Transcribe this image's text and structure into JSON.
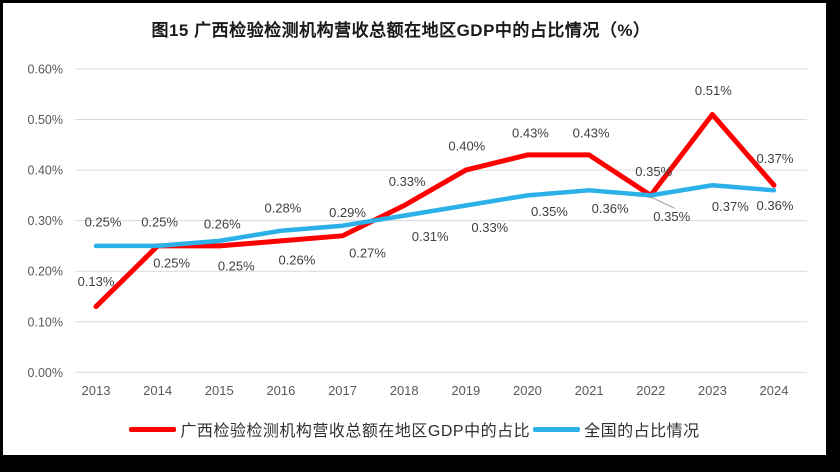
{
  "title": "图15 广西检验检测机构营收总额在地区GDP中的占比情况（%）",
  "chart_data": {
    "type": "line",
    "title": "图15 广西检验检测机构营收总额在地区GDP中的占比情况（%）",
    "categories": [
      "2013",
      "2014",
      "2015",
      "2016",
      "2017",
      "2018",
      "2019",
      "2020",
      "2021",
      "2022",
      "2023",
      "2024"
    ],
    "series": [
      {
        "name": "广西检验检测机构营收总额在地区GDP中的占比",
        "color": "#FF0000",
        "values": [
          0.13,
          0.25,
          0.25,
          0.26,
          0.27,
          0.33,
          0.4,
          0.43,
          0.43,
          0.35,
          0.51,
          0.37
        ],
        "labels": [
          "0.13%",
          "0.25%",
          "0.25%",
          "0.26%",
          "0.27%",
          "0.33%",
          "0.40%",
          "0.43%",
          "0.43%",
          "0.35%",
          "0.51%",
          "0.37%"
        ]
      },
      {
        "name": "全国的占比情况",
        "color": "#2BB0E8",
        "values": [
          0.25,
          0.25,
          0.26,
          0.28,
          0.29,
          0.31,
          0.33,
          0.35,
          0.36,
          0.35,
          0.37,
          0.36
        ],
        "labels": [
          "0.25%",
          "0.25%",
          "0.26%",
          "0.28%",
          "0.29%",
          "0.31%",
          "0.33%",
          "0.35%",
          "0.36%",
          "0.35%",
          "0.37%",
          "0.36%"
        ]
      }
    ],
    "y_ticks": [
      "0.00%",
      "0.10%",
      "0.20%",
      "0.30%",
      "0.40%",
      "0.50%",
      "0.60%"
    ],
    "ylim": [
      0,
      0.6
    ],
    "y_unit": "%",
    "grid": "horizontal",
    "legend_position": "bottom",
    "annotations": [
      {
        "year": "2022",
        "series": "广西检验检测机构营收总额在地区GDP中的占比",
        "label": "0.35%",
        "note": "label pulled out with gray leader line"
      }
    ]
  },
  "colors": {
    "guangxi_line": "#FF0000",
    "national_line": "#2BB0E8",
    "gridline": "#D9D9D9",
    "axis_text": "#595959",
    "label_text": "#3F3F3F",
    "leader_line": "#A6A6A6",
    "frame": "#000000",
    "background": "#FFFFFF"
  }
}
